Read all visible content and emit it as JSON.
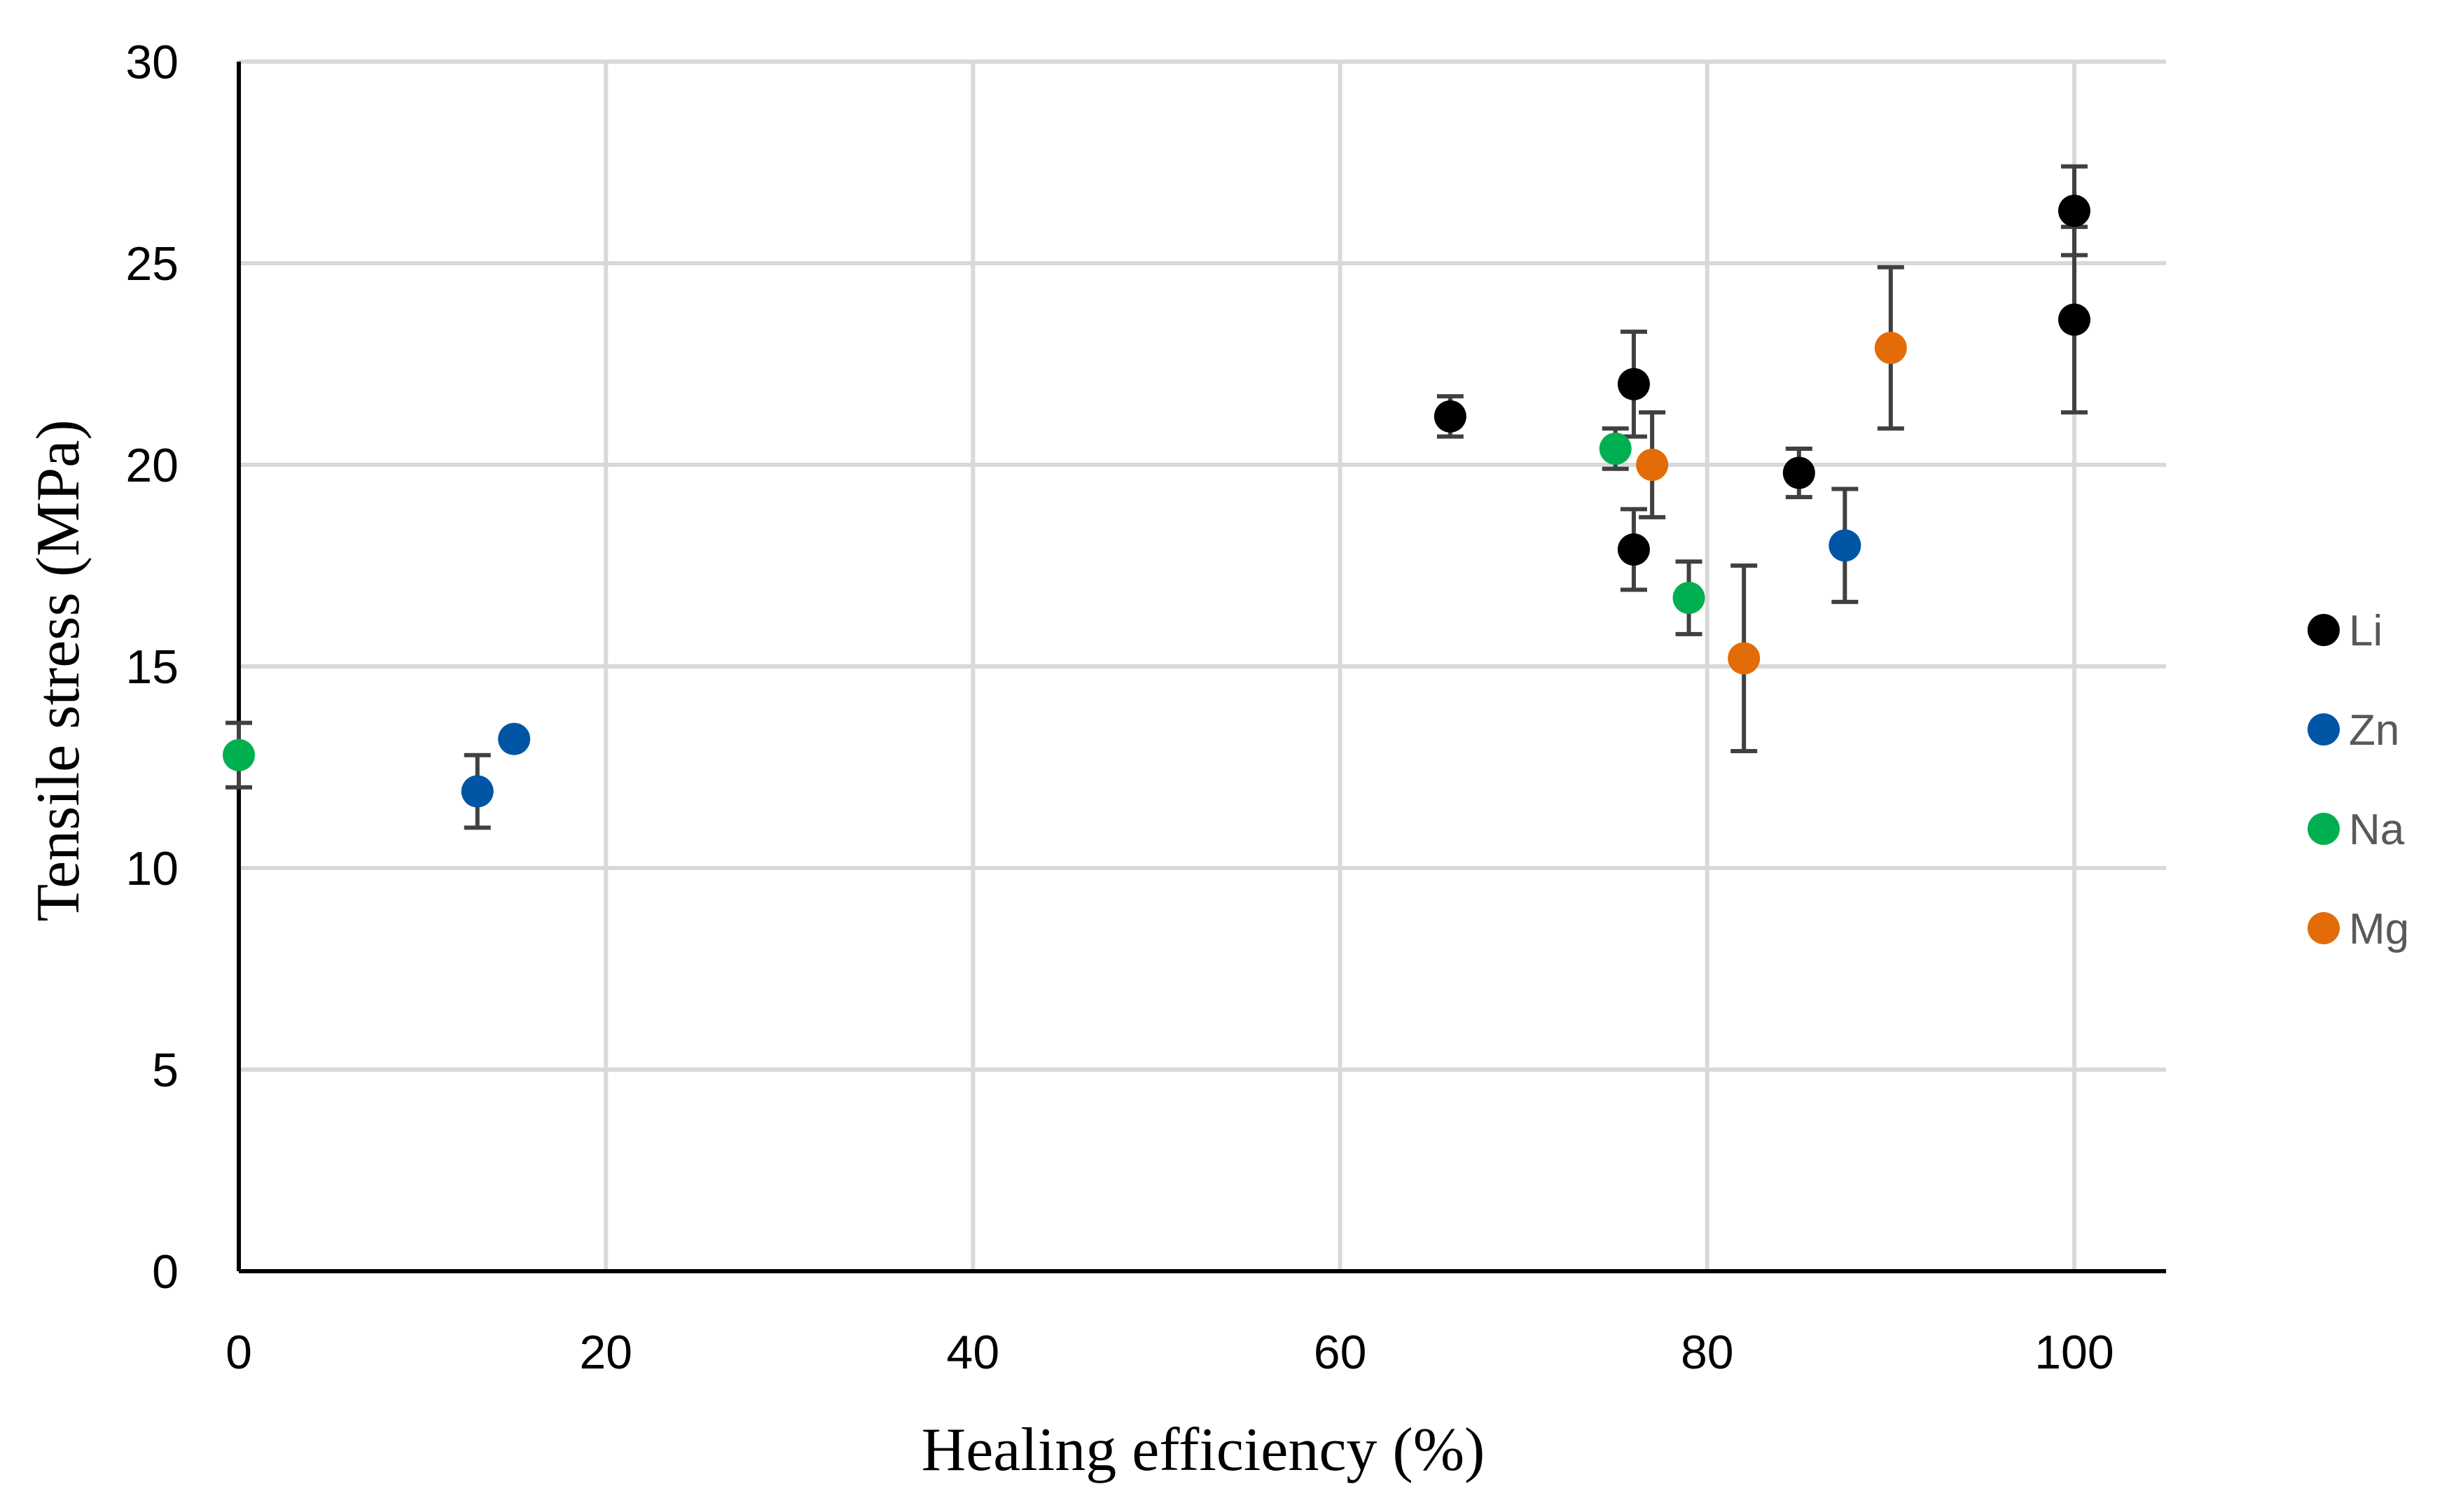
{
  "chart_data": {
    "type": "scatter",
    "title": "",
    "xlabel": "Healing efficiency (%)",
    "ylabel": "Tensile stress (MPa)",
    "xlim": [
      0,
      105
    ],
    "ylim": [
      0,
      30
    ],
    "xticks": [
      0,
      20,
      40,
      60,
      80,
      100
    ],
    "yticks": [
      0,
      5,
      10,
      15,
      20,
      25,
      30
    ],
    "grid": true,
    "legend_position": "right",
    "series": [
      {
        "name": "Li",
        "color": "#000000",
        "points": [
          {
            "x": 66,
            "y": 21.2,
            "err": 0.5
          },
          {
            "x": 76,
            "y": 22.0,
            "err": 1.3
          },
          {
            "x": 76,
            "y": 17.9,
            "err": 1.0
          },
          {
            "x": 85,
            "y": 19.8,
            "err": 0.6
          },
          {
            "x": 100,
            "y": 26.3,
            "err": 1.1
          },
          {
            "x": 100,
            "y": 23.6,
            "err": 2.3
          }
        ]
      },
      {
        "name": "Zn",
        "color": "#0055a4",
        "points": [
          {
            "x": 13,
            "y": 11.9,
            "err": 0.9
          },
          {
            "x": 15,
            "y": 13.2,
            "err": 0
          },
          {
            "x": 87.5,
            "y": 18.0,
            "err": 1.4
          }
        ]
      },
      {
        "name": "Na",
        "color": "#00b050",
        "points": [
          {
            "x": 0,
            "y": 12.8,
            "err": 0.8
          },
          {
            "x": 75,
            "y": 20.4,
            "err": 0.5
          },
          {
            "x": 79,
            "y": 16.7,
            "err": 0.9
          }
        ]
      },
      {
        "name": "Mg",
        "color": "#e36c09",
        "points": [
          {
            "x": 77,
            "y": 20.0,
            "err": 1.3
          },
          {
            "x": 82,
            "y": 15.2,
            "err": 2.3
          },
          {
            "x": 90,
            "y": 22.9,
            "err": 2.0
          }
        ]
      }
    ]
  }
}
